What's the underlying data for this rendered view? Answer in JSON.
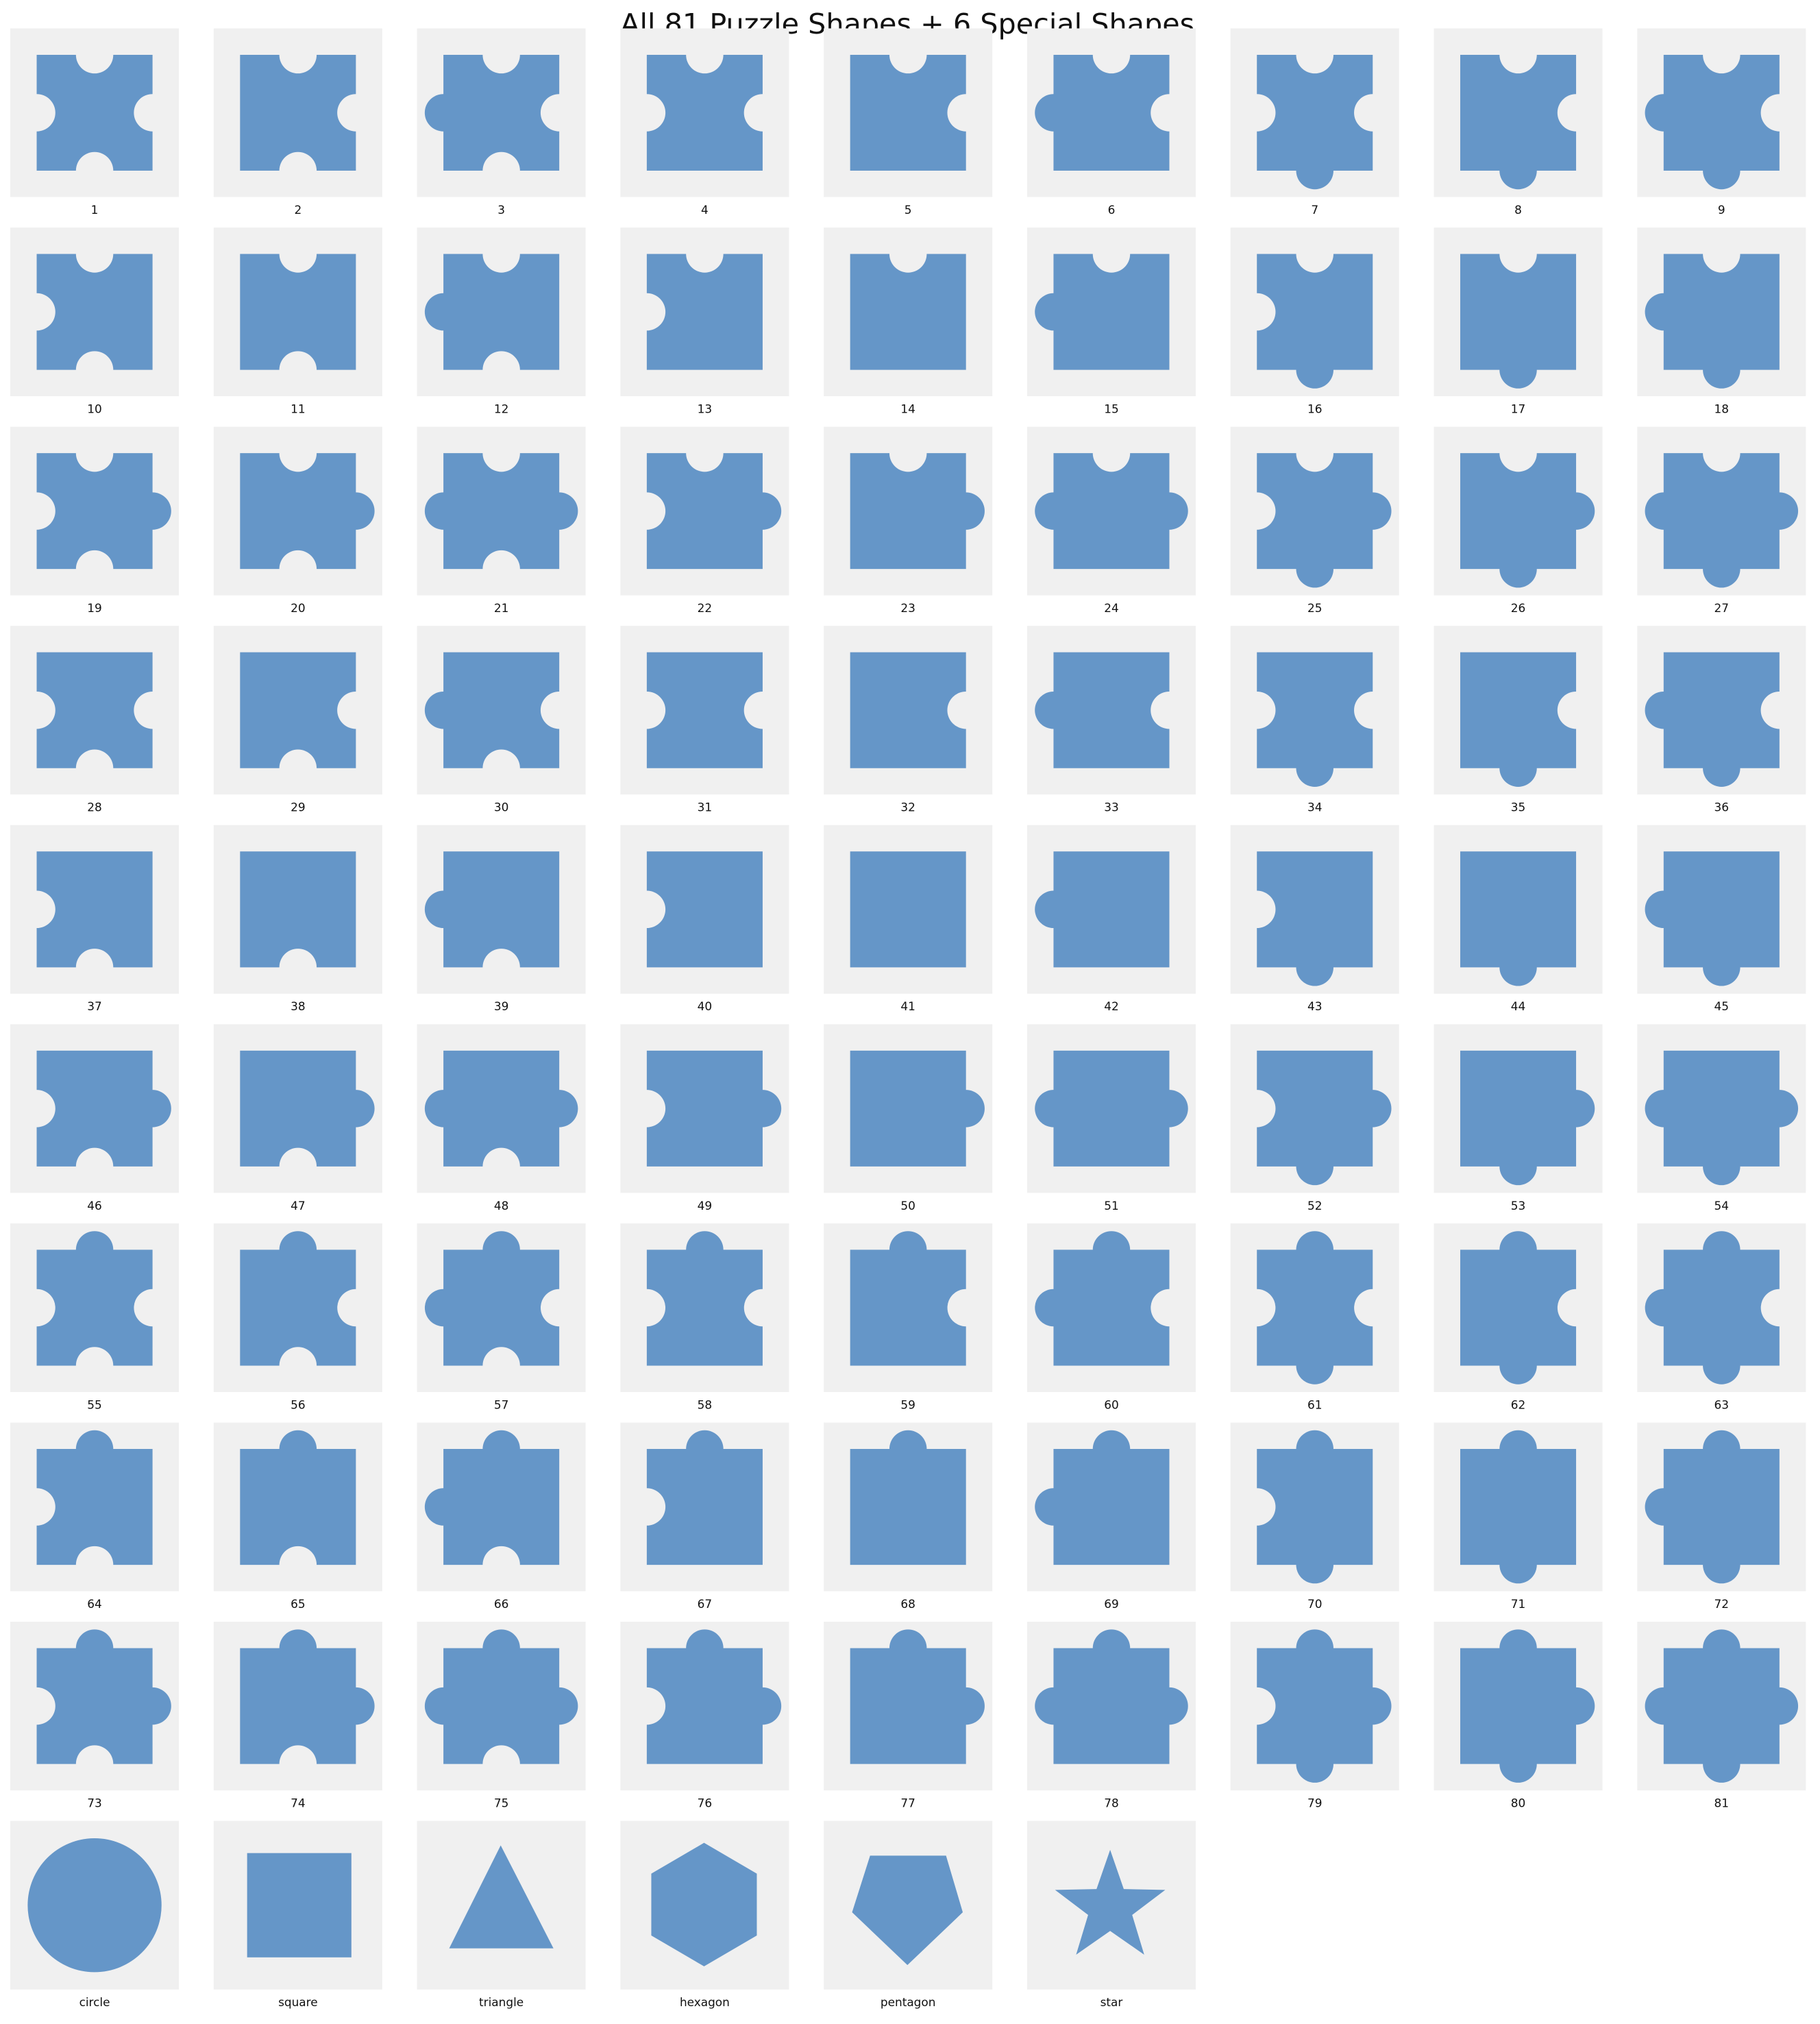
{
  "title": "All 81 Puzzle Shapes + 6 Special Shapes",
  "shapes": [
    "1",
    "2",
    "3",
    "4",
    "5",
    "6",
    "7",
    "8",
    "9",
    "10",
    "11",
    "12",
    "13",
    "14",
    "15",
    "16",
    "17",
    "18",
    "19",
    "20",
    "21",
    "22",
    "23",
    "24",
    "25",
    "26",
    "27",
    "28",
    "29",
    "30",
    "31",
    "32",
    "33",
    "34",
    "35",
    "36",
    "37",
    "38",
    "39",
    "40",
    "41",
    "42",
    "43",
    "44",
    "45",
    "46",
    "47",
    "48",
    "49",
    "50",
    "51",
    "52",
    "53",
    "54",
    "55",
    "56",
    "57",
    "58",
    "59",
    "60",
    "61",
    "62",
    "63",
    "64",
    "65",
    "66",
    "67",
    "68",
    "69",
    "70",
    "71",
    "72",
    "73",
    "74",
    "75",
    "76",
    "77",
    "78",
    "79",
    "80",
    "81",
    "circle",
    "square",
    "triangle",
    "hexagon",
    "pentagon",
    "star"
  ]
}
